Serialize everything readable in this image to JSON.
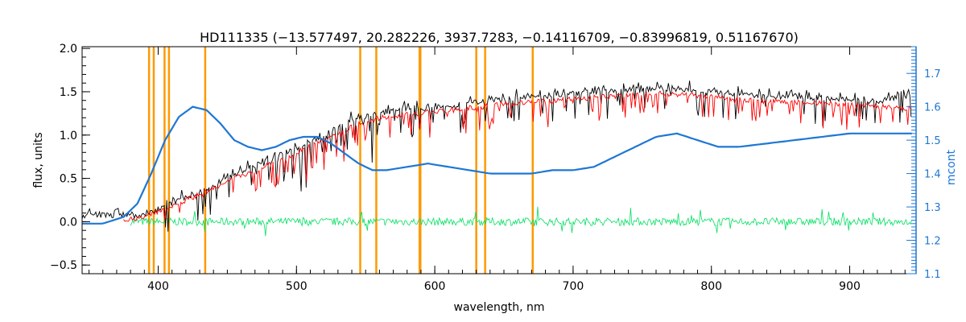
{
  "chart_data": {
    "type": "line",
    "title": "HD111335   (−13.577497, 20.282226, 3937.7283, −0.14116709, −0.83996819, 0.51167670)",
    "xlabel": "wavelength, nm",
    "ylabel": "flux, units",
    "y2label": "mcont",
    "xlim": [
      345,
      948
    ],
    "ylim": [
      -0.6,
      2.02
    ],
    "y2lim": [
      1.1,
      1.78
    ],
    "x_ticks": [
      400,
      500,
      600,
      700,
      800,
      900
    ],
    "y_ticks": [
      -0.5,
      0.0,
      0.5,
      1.0,
      1.5,
      2.0
    ],
    "y_tick_labels": [
      "−0.5",
      "0.0",
      "0.5",
      "1.0",
      "1.5",
      "2.0"
    ],
    "y2_ticks": [
      1.1,
      1.2,
      1.3,
      1.4,
      1.5,
      1.6,
      1.7
    ],
    "y2_tick_labels": [
      "1.1",
      "1.2",
      "1.3",
      "1.4",
      "1.5",
      "1.6",
      "1.7"
    ],
    "grid": false,
    "vertical_lines_nm": [
      393.4,
      396.8,
      404.6,
      407.8,
      434.0,
      546.1,
      557.7,
      589.0,
      589.6,
      630.0,
      636.4,
      670.8
    ],
    "series": [
      {
        "color": "#000000",
        "axis": "left",
        "style": "noisy spectrum",
        "x": [
          345,
          360,
          375,
          385,
          395,
          405,
          420,
          440,
          460,
          480,
          500,
          520,
          540,
          560,
          580,
          600,
          620,
          640,
          660,
          680,
          700,
          720,
          740,
          760,
          780,
          800,
          820,
          840,
          860,
          880,
          900,
          920,
          935,
          945
        ],
        "y": [
          0.06,
          0.07,
          0.08,
          0.05,
          0.1,
          0.18,
          0.28,
          0.42,
          0.58,
          0.72,
          0.85,
          1.0,
          1.18,
          1.25,
          1.3,
          1.32,
          1.36,
          1.4,
          1.43,
          1.45,
          1.48,
          1.5,
          1.52,
          1.54,
          1.53,
          1.5,
          1.47,
          1.45,
          1.44,
          1.43,
          1.41,
          1.38,
          1.45,
          1.48
        ]
      },
      {
        "color": "#ff0000",
        "axis": "left",
        "style": "model spectrum",
        "x": [
          375,
          385,
          395,
          405,
          420,
          440,
          460,
          480,
          500,
          520,
          540,
          560,
          580,
          600,
          620,
          640,
          660,
          680,
          700,
          720,
          740,
          760,
          780,
          800,
          820,
          840,
          860,
          880,
          900,
          920,
          940,
          945
        ],
        "y": [
          0.02,
          0.03,
          0.08,
          0.15,
          0.25,
          0.38,
          0.53,
          0.66,
          0.8,
          0.95,
          1.1,
          1.2,
          1.24,
          1.27,
          1.3,
          1.34,
          1.37,
          1.39,
          1.42,
          1.44,
          1.46,
          1.48,
          1.47,
          1.44,
          1.41,
          1.39,
          1.38,
          1.37,
          1.35,
          1.33,
          1.3,
          1.31
        ]
      },
      {
        "color": "#00e060",
        "axis": "left",
        "style": "residuals",
        "x": [
          380,
          945
        ],
        "y": [
          0.0,
          0.0
        ]
      },
      {
        "color": "#1f77d4",
        "axis": "right",
        "style": "smooth continuum",
        "x": [
          345,
          360,
          375,
          385,
          395,
          405,
          415,
          425,
          435,
          445,
          455,
          465,
          475,
          485,
          495,
          505,
          515,
          525,
          535,
          545,
          555,
          565,
          580,
          595,
          610,
          625,
          640,
          655,
          670,
          685,
          700,
          715,
          730,
          745,
          760,
          775,
          790,
          805,
          820,
          840,
          860,
          880,
          900,
          920,
          945
        ],
        "y": [
          1.25,
          1.25,
          1.27,
          1.31,
          1.4,
          1.5,
          1.57,
          1.6,
          1.59,
          1.55,
          1.5,
          1.48,
          1.47,
          1.48,
          1.5,
          1.51,
          1.51,
          1.49,
          1.46,
          1.43,
          1.41,
          1.41,
          1.42,
          1.43,
          1.42,
          1.41,
          1.4,
          1.4,
          1.4,
          1.41,
          1.41,
          1.42,
          1.45,
          1.48,
          1.51,
          1.52,
          1.5,
          1.48,
          1.48,
          1.49,
          1.5,
          1.51,
          1.52,
          1.52,
          1.52
        ]
      }
    ]
  }
}
